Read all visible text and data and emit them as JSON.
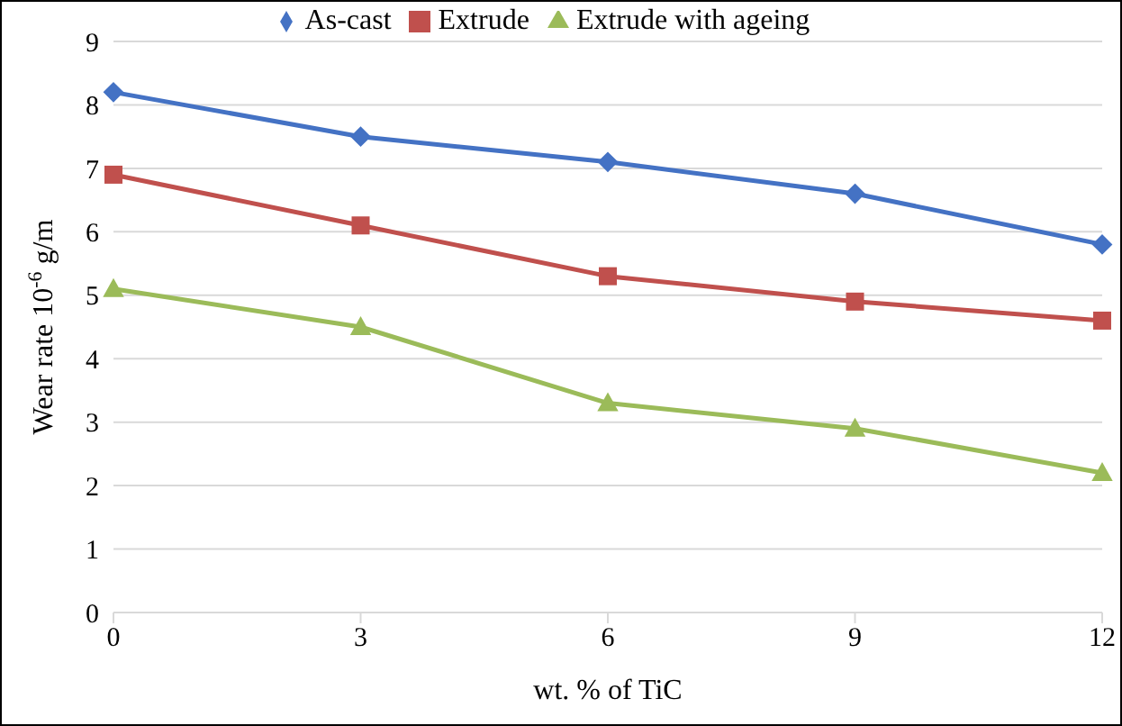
{
  "chart_data": {
    "type": "line",
    "xlabel": "wt. % of TiC",
    "ylabel": "Wear rate 10$^{-6}$ g/m",
    "categories": [
      "0",
      "3",
      "6",
      "9",
      "12"
    ],
    "ylim": [
      0,
      9
    ],
    "yticks": [
      0,
      1,
      2,
      3,
      4,
      5,
      6,
      7,
      8,
      9
    ],
    "grid": "y",
    "legend": "top",
    "line_style": "solid",
    "series": [
      {
        "name": "As-cast",
        "color": "#4472c4",
        "marker": "diamond",
        "values": [
          8.2,
          7.5,
          7.1,
          6.6,
          5.8
        ]
      },
      {
        "name": "Extrude",
        "color": "#c0504d",
        "marker": "square",
        "values": [
          6.9,
          6.1,
          5.3,
          4.9,
          4.6
        ]
      },
      {
        "name": "Extrude with ageing",
        "color": "#9bbb59",
        "marker": "triangle",
        "values": [
          5.1,
          4.5,
          3.3,
          2.9,
          2.2
        ]
      }
    ]
  }
}
